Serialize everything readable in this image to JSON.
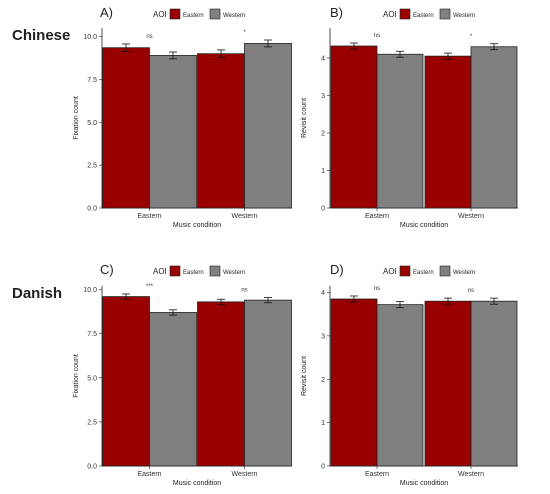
{
  "rows": [
    {
      "label": "Chinese"
    },
    {
      "label": "Danish"
    }
  ],
  "legend": {
    "title": "AOI",
    "items": [
      {
        "label": "Eastern",
        "color": "#990000"
      },
      {
        "label": "Western",
        "color": "#808080"
      }
    ]
  },
  "chart_data": [
    {
      "type": "bar",
      "panel": "A)",
      "categories": [
        "Eastern",
        "Western"
      ],
      "series": [
        {
          "name": "Eastern",
          "values": [
            9.35,
            9.0
          ],
          "errors": [
            0.22,
            0.22
          ]
        },
        {
          "name": "Western",
          "values": [
            8.9,
            9.6
          ],
          "errors": [
            0.2,
            0.2
          ]
        }
      ],
      "significance": [
        "ns",
        "*"
      ],
      "xlabel": "Music condition",
      "ylabel": "Fixation count",
      "ylim": [
        0,
        10.5
      ],
      "yticks": [
        "0.0",
        "2.5",
        "5.0",
        "7.5",
        "10.0"
      ]
    },
    {
      "type": "bar",
      "panel": "B)",
      "categories": [
        "Eastern",
        "Western"
      ],
      "series": [
        {
          "name": "Eastern",
          "values": [
            4.32,
            4.05
          ],
          "errors": [
            0.08,
            0.08
          ]
        },
        {
          "name": "Western",
          "values": [
            4.1,
            4.3
          ],
          "errors": [
            0.08,
            0.08
          ]
        }
      ],
      "significance": [
        "ns",
        "*"
      ],
      "xlabel": "Music condition",
      "ylabel": "Revisit count",
      "ylim": [
        0,
        4.8
      ],
      "yticks": [
        "0",
        "1",
        "2",
        "3",
        "4"
      ]
    },
    {
      "type": "bar",
      "panel": "C)",
      "categories": [
        "Eastern",
        "Western"
      ],
      "series": [
        {
          "name": "Eastern",
          "values": [
            9.6,
            9.3
          ],
          "errors": [
            0.15,
            0.15
          ]
        },
        {
          "name": "Western",
          "values": [
            8.7,
            9.4
          ],
          "errors": [
            0.15,
            0.15
          ]
        }
      ],
      "significance": [
        "***",
        "ns"
      ],
      "xlabel": "Music condition",
      "ylabel": "Fixation count",
      "ylim": [
        0,
        10.2
      ],
      "yticks": [
        "0.0",
        "2.5",
        "5.0",
        "7.5",
        "10.0"
      ]
    },
    {
      "type": "bar",
      "panel": "D)",
      "categories": [
        "Eastern",
        "Western"
      ],
      "series": [
        {
          "name": "Eastern",
          "values": [
            3.85,
            3.8
          ],
          "errors": [
            0.07,
            0.07
          ]
        },
        {
          "name": "Western",
          "values": [
            3.72,
            3.8
          ],
          "errors": [
            0.07,
            0.07
          ]
        }
      ],
      "significance": [
        "ns",
        "ns"
      ],
      "xlabel": "Music condition",
      "ylabel": "Revisit count",
      "ylim": [
        0,
        4.15
      ],
      "yticks": [
        "0",
        "1",
        "2",
        "3",
        "4"
      ]
    }
  ]
}
